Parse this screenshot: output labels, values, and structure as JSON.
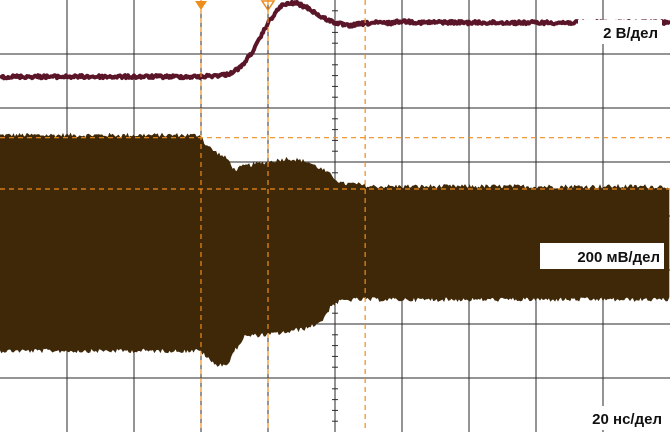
{
  "chart_data": {
    "type": "line",
    "title": "",
    "xlabel": "",
    "ylabel": "",
    "grid": true,
    "divisions": {
      "x": 10,
      "y": 8
    },
    "x_unit_label": "20 нс/дел",
    "xlim_div": [
      0,
      10
    ],
    "ylim_div": [
      0,
      8
    ],
    "series": [
      {
        "scale_label": "2 В/дел",
        "color": "#5a1628",
        "x_div": [
          0.0,
          3.0,
          3.4,
          3.6,
          3.8,
          4.0,
          4.2,
          4.4,
          4.6,
          4.8,
          5.0,
          5.2,
          5.4,
          5.6,
          5.8,
          6.0,
          6.3,
          6.6,
          7.0,
          10.0
        ],
        "y_div": [
          6.58,
          6.58,
          6.62,
          6.76,
          7.1,
          7.58,
          7.9,
          7.95,
          7.85,
          7.68,
          7.58,
          7.52,
          7.56,
          7.58,
          7.57,
          7.61,
          7.58,
          7.59,
          7.58,
          7.58
        ]
      },
      {
        "scale_label": "200 мВ/дел",
        "color": "#3e2808",
        "x_div": [
          0.0,
          3.0,
          3.05,
          3.2,
          3.4,
          3.5,
          3.65,
          4.0,
          4.3,
          4.6,
          4.8,
          4.95,
          5.1,
          5.3,
          5.5,
          10.0
        ],
        "upper_div": [
          5.45,
          5.45,
          5.3,
          5.15,
          5.0,
          4.8,
          4.88,
          4.95,
          5.02,
          4.95,
          4.82,
          4.7,
          4.55,
          4.55,
          4.5,
          4.5
        ],
        "lower_div": [
          1.55,
          1.55,
          1.48,
          1.3,
          1.3,
          1.55,
          1.82,
          1.85,
          1.9,
          1.98,
          2.1,
          2.4,
          2.48,
          2.5,
          2.5,
          2.5
        ]
      }
    ],
    "cursors": {
      "color": "#ee8c1c",
      "vertical_x_div": [
        3.0,
        4.0,
        5.45
      ],
      "horizontal_y_div": [
        5.45,
        4.5
      ],
      "trigger_markers_x_div": [
        3.0,
        4.0
      ]
    }
  }
}
